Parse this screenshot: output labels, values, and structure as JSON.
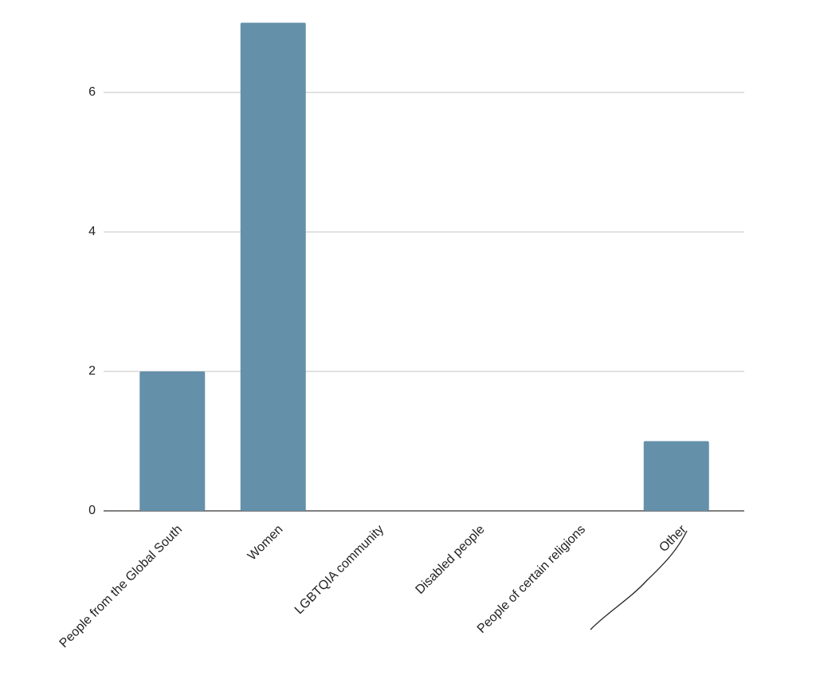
{
  "chart_data": {
    "type": "bar",
    "categories": [
      "People from the Global South",
      "Women",
      "LGBTQIA community",
      "Disabled people",
      "People of certain religions",
      "Other"
    ],
    "values": [
      2,
      7,
      0,
      0,
      0,
      1
    ],
    "color": "#6490aa",
    "ylim": [
      0,
      7
    ],
    "yticks": [
      0,
      2,
      4,
      6
    ],
    "grid": true
  }
}
